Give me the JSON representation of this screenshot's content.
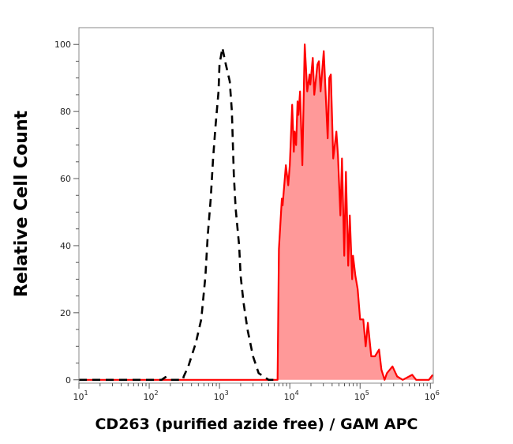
{
  "chart_data": {
    "type": "area",
    "title": "",
    "xlabel": "CD263 (purified azide free) / GAM APC",
    "ylabel": "Relative Cell Count",
    "x_scale": "log",
    "xlim": [
      10,
      1100000
    ],
    "ylim": [
      -1,
      105
    ],
    "xticks": [
      10,
      100,
      1000,
      10000,
      100000,
      1000000
    ],
    "xtick_labels": [
      "10^1",
      "10^2",
      "10^3",
      "10^4",
      "10^5",
      "10^6"
    ],
    "yticks": [
      0,
      20,
      40,
      60,
      80,
      100
    ],
    "ytick_labels": [
      "0",
      "20",
      "40",
      "60",
      "80",
      "100"
    ],
    "grid": false,
    "legend": "none",
    "series": [
      {
        "style": "dashed line, unfilled",
        "color": "#000000",
        "points": [
          [
            10,
            0
          ],
          [
            150,
            0
          ],
          [
            170,
            0.8
          ],
          [
            190,
            0
          ],
          [
            300,
            0
          ],
          [
            310,
            1
          ],
          [
            360,
            4
          ],
          [
            460,
            11
          ],
          [
            550,
            18
          ],
          [
            630,
            31
          ],
          [
            680,
            43
          ],
          [
            750,
            54
          ],
          [
            810,
            66
          ],
          [
            880,
            76
          ],
          [
            970,
            86
          ],
          [
            1000,
            94
          ],
          [
            1100,
            99
          ],
          [
            1200,
            95
          ],
          [
            1400,
            89
          ],
          [
            1500,
            80
          ],
          [
            1550,
            70
          ],
          [
            1600,
            61
          ],
          [
            1700,
            51
          ],
          [
            1900,
            40
          ],
          [
            2000,
            31
          ],
          [
            2200,
            23
          ],
          [
            2500,
            15
          ],
          [
            3000,
            7
          ],
          [
            3600,
            2
          ],
          [
            5000,
            0
          ],
          [
            6000,
            0
          ]
        ]
      },
      {
        "style": "solid line, filled",
        "color": "#ff0000",
        "fill": "#ff9999",
        "points": [
          [
            10,
            0
          ],
          [
            6700,
            0
          ],
          [
            7000,
            39
          ],
          [
            7700,
            54
          ],
          [
            7900,
            52
          ],
          [
            8800,
            64
          ],
          [
            9500,
            58
          ],
          [
            10000,
            64
          ],
          [
            10800,
            82
          ],
          [
            11400,
            68
          ],
          [
            11700,
            74
          ],
          [
            12300,
            70
          ],
          [
            12900,
            83
          ],
          [
            13300,
            79
          ],
          [
            14000,
            86
          ],
          [
            15100,
            64
          ],
          [
            16300,
            100
          ],
          [
            17700,
            86
          ],
          [
            19100,
            91
          ],
          [
            19600,
            88
          ],
          [
            21200,
            96
          ],
          [
            22300,
            85
          ],
          [
            24700,
            94
          ],
          [
            26000,
            95
          ],
          [
            27400,
            86
          ],
          [
            30400,
            98
          ],
          [
            34600,
            72
          ],
          [
            36400,
            90
          ],
          [
            38400,
            91
          ],
          [
            41500,
            66
          ],
          [
            46000,
            74
          ],
          [
            48400,
            67
          ],
          [
            52400,
            49
          ],
          [
            55200,
            66
          ],
          [
            59600,
            37
          ],
          [
            62800,
            62
          ],
          [
            67800,
            34
          ],
          [
            71400,
            49
          ],
          [
            77200,
            30
          ],
          [
            79300,
            37
          ],
          [
            85700,
            31
          ],
          [
            92500,
            27
          ],
          [
            100000,
            18
          ],
          [
            111000,
            18
          ],
          [
            120000,
            10
          ],
          [
            129000,
            17
          ],
          [
            144000,
            7
          ],
          [
            163000,
            7
          ],
          [
            186000,
            9
          ],
          [
            201000,
            3
          ],
          [
            223000,
            0
          ],
          [
            241000,
            2
          ],
          [
            289000,
            4
          ],
          [
            337000,
            1
          ],
          [
            404000,
            0
          ],
          [
            552000,
            1.5
          ],
          [
            628000,
            0
          ],
          [
            951000,
            0
          ],
          [
            1080000,
            1.5
          ]
        ]
      }
    ]
  }
}
